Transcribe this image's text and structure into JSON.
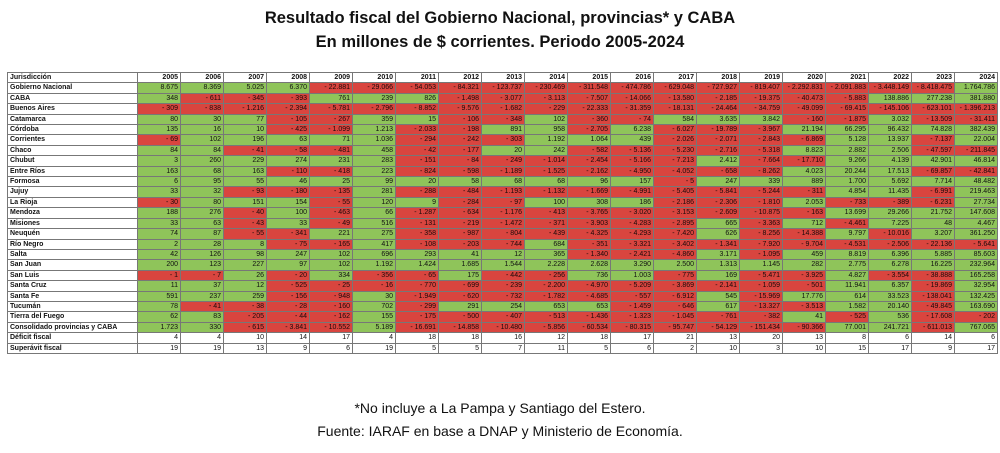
{
  "title": [
    "Resultado fiscal del  Gobierno Nacional, provincias* y CABA",
    "En millones de $ corrientes. Periodo 2005-2024"
  ],
  "header": {
    "label": "Jurisdicción",
    "years": [
      "2005",
      "2006",
      "2007",
      "2008",
      "2009",
      "2010",
      "2011",
      "2012",
      "2013",
      "2014",
      "2015",
      "2016",
      "2017",
      "2018",
      "2019",
      "2020",
      "2021",
      "2022",
      "2023",
      "2024"
    ]
  },
  "rows": [
    {
      "name": "Gobierno Nacional",
      "values": [
        "8.675",
        "8.369",
        "5.025",
        "6.370",
        "- 22.881",
        "- 29.066",
        "- 54.053",
        "- 84.321",
        "- 123.737",
        "- 230.469",
        "- 311.548",
        "- 474.786",
        "- 629.048",
        "- 727.927",
        "- 819.407",
        "- 2.292.831",
        "- 2.091.883",
        "- 3.448.149",
        "- 8.418.475",
        "1.764.786"
      ]
    },
    {
      "name": "CABA",
      "values": [
        "348",
        "- 611",
        "- 345",
        "- 393",
        "761",
        "239",
        "826",
        "- 1.498",
        "- 3.077",
        "- 3.113",
        "- 7.507",
        "- 14.066",
        "- 13.580",
        "- 2.185",
        "- 19.375",
        "- 40.473",
        "- 5.883",
        "138.886",
        "277.238",
        "381.880"
      ]
    },
    {
      "name": "Buenos Aires",
      "values": [
        "- 309",
        "- 838",
        "- 1.216",
        "- 2.394",
        "- 5.781",
        "- 2.796",
        "- 8.852",
        "- 9.576",
        "- 1.682",
        "- 229",
        "- 22.333",
        "- 31.359",
        "- 18.131",
        "- 24.464",
        "- 34.759",
        "- 49.099",
        "- 69.415",
        "- 145.106",
        "- 623.101",
        "- 1.396.213"
      ]
    },
    {
      "name": "Catamarca",
      "values": [
        "80",
        "30",
        "77",
        "- 105",
        "- 267",
        "359",
        "15",
        "- 106",
        "- 348",
        "102",
        "- 360",
        "- 74",
        "584",
        "3.635",
        "3.842",
        "- 160",
        "- 1.875",
        "3.032",
        "- 13.509",
        "- 31.411"
      ]
    },
    {
      "name": "Córdoba",
      "values": [
        "135",
        "16",
        "10",
        "- 425",
        "- 1.099",
        "1.213",
        "- 2.033",
        "- 198",
        "891",
        "958",
        "- 2.705",
        "6.238",
        "- 6.027",
        "- 19.789",
        "- 3.967",
        "21.194",
        "66.295",
        "96.432",
        "74.828",
        "382.439"
      ]
    },
    {
      "name": "Corrientes",
      "values": [
        "- 69",
        "102",
        "196",
        "63",
        "71",
        "1.036",
        "- 294",
        "- 242",
        "- 303",
        "1.192",
        "1.064",
        "439",
        "- 2.026",
        "- 2.071",
        "- 2.843",
        "- 6.869",
        "5.128",
        "13.937",
        "- 7.137",
        "22.004"
      ]
    },
    {
      "name": "Chaco",
      "values": [
        "84",
        "84",
        "- 41",
        "- 58",
        "- 481",
        "458",
        "- 42",
        "- 177",
        "20",
        "242",
        "- 582",
        "- 5.136",
        "- 5.230",
        "- 2.716",
        "- 5.318",
        "8.823",
        "2.882",
        "2.506",
        "- 47.597",
        "- 211.845"
      ]
    },
    {
      "name": "Chubut",
      "values": [
        "3",
        "260",
        "229",
        "274",
        "231",
        "283",
        "- 151",
        "- 84",
        "- 249",
        "- 1.014",
        "- 2.454",
        "- 5.166",
        "- 7.213",
        "2.412",
        "- 7.664",
        "- 17.710",
        "9.266",
        "4.139",
        "42.901",
        "46.814"
      ]
    },
    {
      "name": "Entre Ríos",
      "values": [
        "163",
        "68",
        "163",
        "- 110",
        "- 418",
        "223",
        "- 824",
        "- 598",
        "- 1.189",
        "- 1.525",
        "- 2.162",
        "- 4.950",
        "- 4.052",
        "- 658",
        "- 8.262",
        "4.023",
        "20.244",
        "17.513",
        "- 69.857",
        "- 42.841"
      ]
    },
    {
      "name": "Formosa",
      "values": [
        "6",
        "95",
        "55",
        "46",
        "25",
        "99",
        "20",
        "58",
        "68",
        "68",
        "96",
        "157",
        "- 5",
        "247",
        "339",
        "889",
        "1.700",
        "5.692",
        "7.714",
        "48.482"
      ]
    },
    {
      "name": "Jujuy",
      "values": [
        "33",
        "32",
        "- 93",
        "- 180",
        "- 135",
        "281",
        "- 288",
        "- 484",
        "- 1.193",
        "- 1.132",
        "- 1.669",
        "- 4.991",
        "- 5.405",
        "- 5.841",
        "- 5.244",
        "- 311",
        "4.854",
        "11.435",
        "- 6.991",
        "219.463"
      ]
    },
    {
      "name": "La Rioja",
      "values": [
        "- 30",
        "80",
        "151",
        "154",
        "- 55",
        "120",
        "9",
        "- 284",
        "- 97",
        "100",
        "308",
        "186",
        "- 2.186",
        "- 2.306",
        "- 1.810",
        "2.053",
        "- 733",
        "- 389",
        "- 6.231",
        "27.734"
      ]
    },
    {
      "name": "Mendoza",
      "values": [
        "188",
        "276",
        "- 40",
        "100",
        "- 463",
        "66",
        "- 1.287",
        "- 634",
        "- 1.176",
        "- 413",
        "- 3.765",
        "- 3.020",
        "- 3.153",
        "- 2.609",
        "- 10.875",
        "- 163",
        "13.699",
        "29.266",
        "21.752",
        "147.608"
      ]
    },
    {
      "name": "Misiones",
      "values": [
        "33",
        "63",
        "- 43",
        "33",
        "- 49",
        "516",
        "- 131",
        "- 219",
        "- 1.472",
        "- 371",
        "- 3.903",
        "- 4.283",
        "- 2.895",
        "665",
        "- 3.363",
        "712",
        "- 4.461",
        "7.225",
        "48",
        "4.467"
      ]
    },
    {
      "name": "Neuquén",
      "values": [
        "74",
        "87",
        "- 55",
        "- 341",
        "221",
        "275",
        "- 358",
        "- 987",
        "- 804",
        "- 439",
        "- 4.325",
        "- 4.293",
        "- 7.420",
        "626",
        "- 8.256",
        "- 14.388",
        "9.797",
        "- 10.016",
        "3.207",
        "361.250"
      ]
    },
    {
      "name": "Río Negro",
      "values": [
        "2",
        "28",
        "8",
        "- 75",
        "- 165",
        "417",
        "- 108",
        "- 203",
        "- 744",
        "684",
        "- 351",
        "- 3.321",
        "- 3.402",
        "- 1.341",
        "- 7.920",
        "- 9.704",
        "- 4.531",
        "- 2.506",
        "- 22.136",
        "- 5.641"
      ]
    },
    {
      "name": "Salta",
      "values": [
        "42",
        "126",
        "98",
        "247",
        "102",
        "696",
        "293",
        "41",
        "12",
        "365",
        "- 1.340",
        "- 2.421",
        "- 4.860",
        "3.171",
        "- 1.095",
        "459",
        "8.819",
        "6.396",
        "5.885",
        "85.603"
      ]
    },
    {
      "name": "San Juan",
      "values": [
        "200",
        "123",
        "227",
        "97",
        "102",
        "1.192",
        "1.424",
        "1.685",
        "1.544",
        "2.228",
        "2.628",
        "3.290",
        "2.500",
        "1.313",
        "1.145",
        "282",
        "2.775",
        "6.278",
        "16.225",
        "232.964"
      ]
    },
    {
      "name": "San Luis",
      "values": [
        "- 1",
        "- 7",
        "26",
        "- 20",
        "334",
        "- 356",
        "- 65",
        "175",
        "- 442",
        "- 256",
        "736",
        "1.003",
        "- 775",
        "169",
        "- 5.471",
        "- 3.925",
        "4.827",
        "- 3.554",
        "- 38.888",
        "165.258"
      ]
    },
    {
      "name": "Santa Cruz",
      "values": [
        "11",
        "37",
        "12",
        "- 525",
        "- 25",
        "- 16",
        "- 770",
        "- 699",
        "- 239",
        "- 2.200",
        "- 4.970",
        "- 5.209",
        "- 3.869",
        "- 2.141",
        "- 1.059",
        "- 501",
        "11.941",
        "6.357",
        "- 19.869",
        "32.954"
      ]
    },
    {
      "name": "Santa Fe",
      "values": [
        "591",
        "237",
        "259",
        "- 156",
        "- 948",
        "30",
        "- 1.949",
        "- 620",
        "- 732",
        "- 1.782",
        "- 4.685",
        "- 557",
        "- 6.912",
        "545",
        "- 15.969",
        "17.776",
        "614",
        "33.523",
        "- 138.041",
        "132.425"
      ]
    },
    {
      "name": "Tucumán",
      "values": [
        "78",
        "- 41",
        "- 38",
        "- 28",
        "- 160",
        "702",
        "- 299",
        "291",
        "254",
        "653",
        "653",
        "- 1.459",
        "- 646",
        "617",
        "- 13.327",
        "- 3.513",
        "1.582",
        "20.140",
        "- 49.845",
        "163.690"
      ]
    },
    {
      "name": "Tierra del Fuego",
      "values": [
        "62",
        "83",
        "- 205",
        "- 44",
        "- 162",
        "155",
        "- 175",
        "- 500",
        "- 407",
        "- 513",
        "- 1.436",
        "- 1.323",
        "- 1.045",
        "- 761",
        "- 382",
        "41",
        "- 525",
        "536",
        "- 17.608",
        "- 202"
      ]
    },
    {
      "name": "Consolidado provincias y CABA",
      "values": [
        "1.723",
        "330",
        "- 615",
        "- 3.841",
        "- 10.552",
        "5.189",
        "- 16.691",
        "- 14.858",
        "- 10.480",
        "- 5.856",
        "- 60.534",
        "- 80.315",
        "- 95.747",
        "- 54.129",
        "- 151.434",
        "- 90.366",
        "77.001",
        "241.721",
        "- 611.013",
        "767.065"
      ]
    }
  ],
  "summary": [
    {
      "name": "Déficit fiscal",
      "values": [
        "4",
        "4",
        "10",
        "14",
        "17",
        "4",
        "18",
        "18",
        "16",
        "12",
        "18",
        "17",
        "21",
        "13",
        "20",
        "13",
        "8",
        "6",
        "14",
        "6"
      ]
    },
    {
      "name": "Superávit fiscal",
      "values": [
        "19",
        "19",
        "13",
        "9",
        "6",
        "19",
        "5",
        "5",
        "7",
        "11",
        "5",
        "6",
        "2",
        "10",
        "3",
        "10",
        "15",
        "17",
        "9",
        "17"
      ]
    }
  ],
  "footnotes": [
    "*No incluye a La Pampa y Santiago del Estero.",
    "Fuente: IARAF en base a DNAP y Ministerio de Economía."
  ],
  "colors": {
    "positive": "#8fc45a",
    "negative": "#d9453f"
  }
}
